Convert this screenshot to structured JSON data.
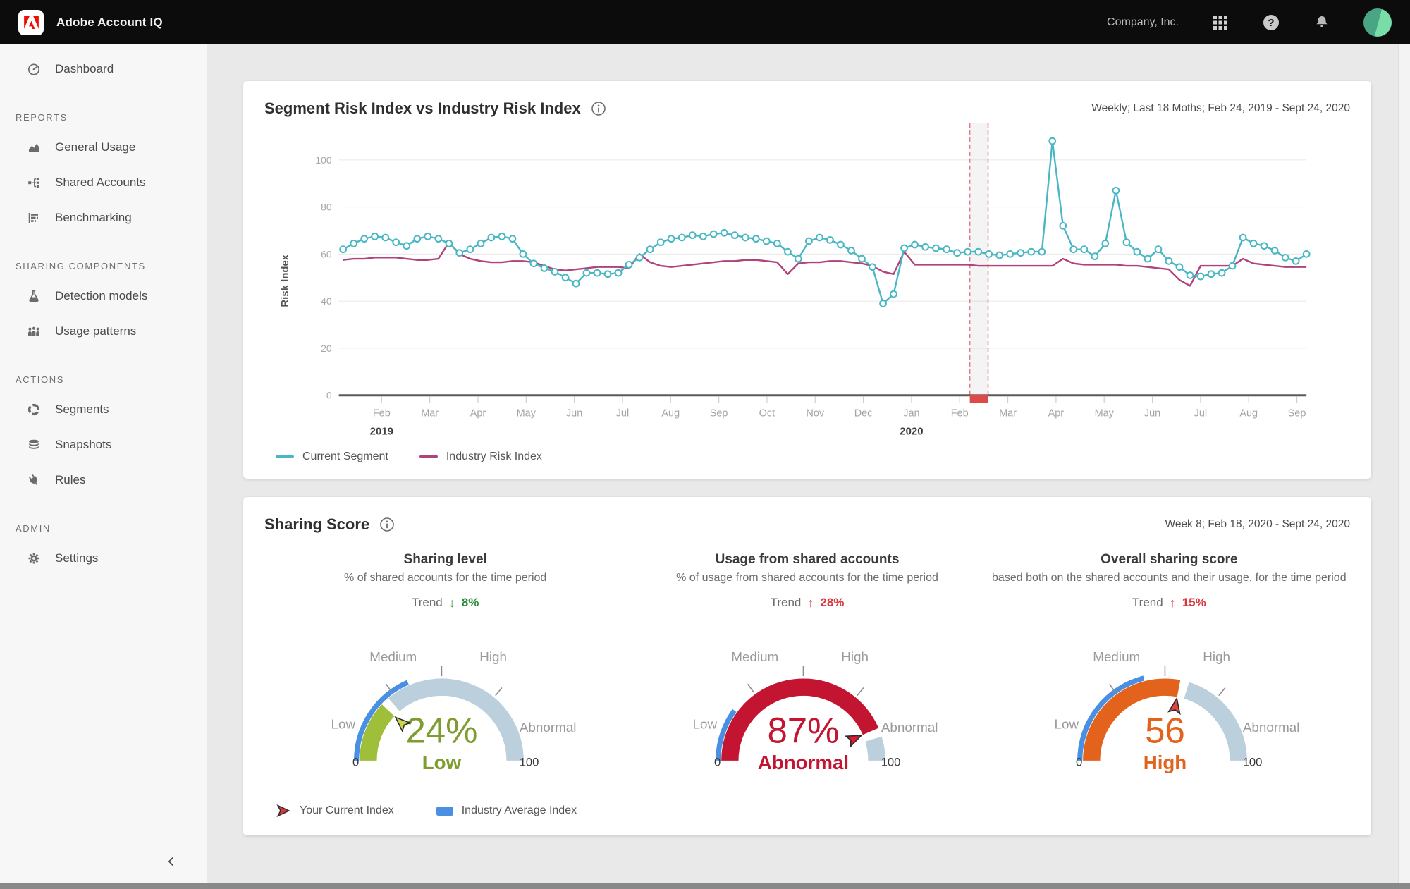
{
  "header": {
    "app_title": "Adobe Account IQ",
    "company": "Company, Inc."
  },
  "sidebar": {
    "groups": [
      {
        "heading": "",
        "items": [
          {
            "label": "Dashboard",
            "icon": "dashboard"
          }
        ]
      },
      {
        "heading": "REPORTS",
        "items": [
          {
            "label": "General Usage",
            "icon": "area"
          },
          {
            "label": "Shared Accounts",
            "icon": "tree"
          },
          {
            "label": "Benchmarking",
            "icon": "bars"
          }
        ]
      },
      {
        "heading": "SHARING COMPONENTS",
        "items": [
          {
            "label": "Detection models",
            "icon": "flask"
          },
          {
            "label": "Usage patterns",
            "icon": "people"
          }
        ]
      },
      {
        "heading": "ACTIONS",
        "items": [
          {
            "label": "Segments",
            "icon": "donut"
          },
          {
            "label": "Snapshots",
            "icon": "database"
          },
          {
            "label": "Rules",
            "icon": "plug"
          }
        ]
      },
      {
        "heading": "ADMIN",
        "items": [
          {
            "label": "Settings",
            "icon": "gear"
          }
        ]
      }
    ]
  },
  "risk_card": {
    "title": "Segment Risk Index vs Industry Risk Index",
    "period": "Weekly;  Last 18 Moths;  Feb 24, 2019 - Sept 24, 2020",
    "y_label": "Risk Index"
  },
  "sharing_card": {
    "title": "Sharing Score",
    "period": "Week 8;  Feb 18, 2020 - Sept 24, 2020",
    "legend": [
      {
        "label": "Your  Current Index",
        "marker": "cursor-arrow",
        "color": "#d7373f"
      },
      {
        "label": "Industry Average Index",
        "marker": "swatch",
        "color": "#4a90e2"
      }
    ]
  },
  "chart_data": [
    {
      "type": "line",
      "title": "Segment Risk Index vs Industry Risk Index",
      "xlabel": "",
      "ylabel": "Risk Index",
      "ylim": [
        0,
        110
      ],
      "y_ticks": [
        0,
        20,
        40,
        60,
        80,
        100
      ],
      "grid": "horizontal",
      "legend_position": "bottom-left",
      "x_unit": "week",
      "x_tick_months": [
        "Feb",
        "Mar",
        "Apr",
        "May",
        "Jun",
        "Jul",
        "Aug",
        "Sep",
        "Oct",
        "Nov",
        "Dec",
        "Jan",
        "Feb",
        "Mar",
        "Apr",
        "May",
        "Jun",
        "Jul",
        "Aug",
        "Sep"
      ],
      "year_labels": [
        {
          "month_index": 0,
          "label": "2019"
        },
        {
          "month_index": 11,
          "label": "2020"
        }
      ],
      "highlight_band": {
        "month_position": 12.4,
        "border_color": "#e8798a",
        "tab_color": "#dd4a4a",
        "fill": "rgba(120,120,120,0.08)"
      },
      "series": [
        {
          "name": "Current Segment",
          "color": "#49b7c3",
          "markers": true,
          "values": [
            62,
            64.5,
            66.5,
            67.5,
            67,
            65,
            63.5,
            66.5,
            67.5,
            66.5,
            64.5,
            60.5,
            62,
            64.5,
            67,
            67.5,
            66.5,
            60,
            56,
            54,
            52.5,
            50,
            47.5,
            52,
            52,
            51.5,
            52,
            55.5,
            58.5,
            62,
            65,
            66.5,
            67,
            68,
            67.5,
            68.5,
            69,
            68,
            67,
            66.5,
            65.5,
            64.5,
            61,
            58,
            65.5,
            67,
            66,
            64,
            61.5,
            58,
            54.5,
            39,
            43,
            62.5,
            64,
            63,
            62.5,
            62,
            60.5,
            61,
            61,
            60,
            59.5,
            60,
            60.5,
            61,
            61,
            108,
            72,
            62,
            62,
            59,
            64.5,
            87,
            65,
            61,
            58,
            62,
            57,
            54.5,
            51,
            50.5,
            51.5,
            52,
            55,
            67,
            64.5,
            63.5,
            61.5,
            58.5,
            57,
            60
          ]
        },
        {
          "name": "Industry Risk Index",
          "color": "#b0437c",
          "markers": false,
          "values": [
            57.5,
            58,
            58,
            58.5,
            58.5,
            58.5,
            58,
            57.5,
            57.5,
            58,
            65,
            60,
            58,
            57,
            56.5,
            56.5,
            57,
            57,
            56.5,
            55,
            53.5,
            53,
            53.5,
            54,
            54.5,
            54.5,
            54.5,
            54,
            60,
            56.5,
            55,
            54.5,
            55,
            55.5,
            56,
            56.5,
            57,
            57,
            57.5,
            57.5,
            57,
            56.5,
            51.5,
            56,
            56.5,
            56.5,
            57,
            57,
            56.5,
            56,
            55,
            52.5,
            51.5,
            61,
            55.5,
            55.5,
            55.5,
            55.5,
            55.5,
            55.5,
            55,
            55,
            55,
            55,
            55,
            55,
            55,
            55,
            58,
            56,
            55.5,
            55.5,
            55.5,
            55.5,
            55,
            55,
            54.5,
            54,
            53.5,
            49,
            46.5,
            55,
            55,
            55,
            55,
            58,
            56,
            55.5,
            55,
            54.5,
            54.5,
            54.5
          ]
        }
      ]
    },
    {
      "type": "gauge",
      "title": "Sharing level",
      "subtitle": "% of shared accounts for the time period",
      "trend_label": "Trend",
      "trend_direction": "down",
      "trend_value": "8%",
      "trend_color": "#2c8c3c",
      "value": 24,
      "value_display": "24%",
      "status": "Low",
      "min": "0",
      "max": "100",
      "bands": [
        "Low",
        "Medium",
        "High",
        "Abnormal"
      ],
      "fill_color": "#9fbf3a",
      "rest_color": "#bccfdc",
      "industry_value": 37,
      "industry_color": "#4a90e2",
      "text_color": "#7f9c30",
      "cursor_color": "#ccd64c"
    },
    {
      "type": "gauge",
      "title": "Usage from shared accounts",
      "subtitle": "% of usage from shared accounts for the time period",
      "trend_label": "Trend",
      "trend_direction": "up",
      "trend_value": "28%",
      "trend_color": "#d7373f",
      "value": 87,
      "value_display": "87%",
      "status": "Abnormal",
      "min": "0",
      "max": "100",
      "bands": [
        "Low",
        "Medium",
        "High",
        "Abnormal"
      ],
      "fill_color": "#c31432",
      "rest_color": "#bccfdc",
      "industry_value": 20,
      "industry_color": "#4a90e2",
      "text_color": "#c31432",
      "cursor_color": "#e11931"
    },
    {
      "type": "gauge",
      "title": "Overall sharing score",
      "subtitle": "based both on the shared accounts and their usage, for the time period",
      "trend_label": "Trend",
      "trend_direction": "up",
      "trend_value": "15%",
      "trend_color": "#d7373f",
      "value": 56,
      "value_display": "56",
      "status": "High",
      "min": "0",
      "max": "100",
      "bands": [
        "Low",
        "Medium",
        "High",
        "Abnormal"
      ],
      "fill_color": "#e4631c",
      "rest_color": "#bccfdc",
      "industry_value": 42,
      "industry_color": "#4a90e2",
      "text_color": "#e4631c",
      "cursor_color": "#e04343"
    }
  ]
}
